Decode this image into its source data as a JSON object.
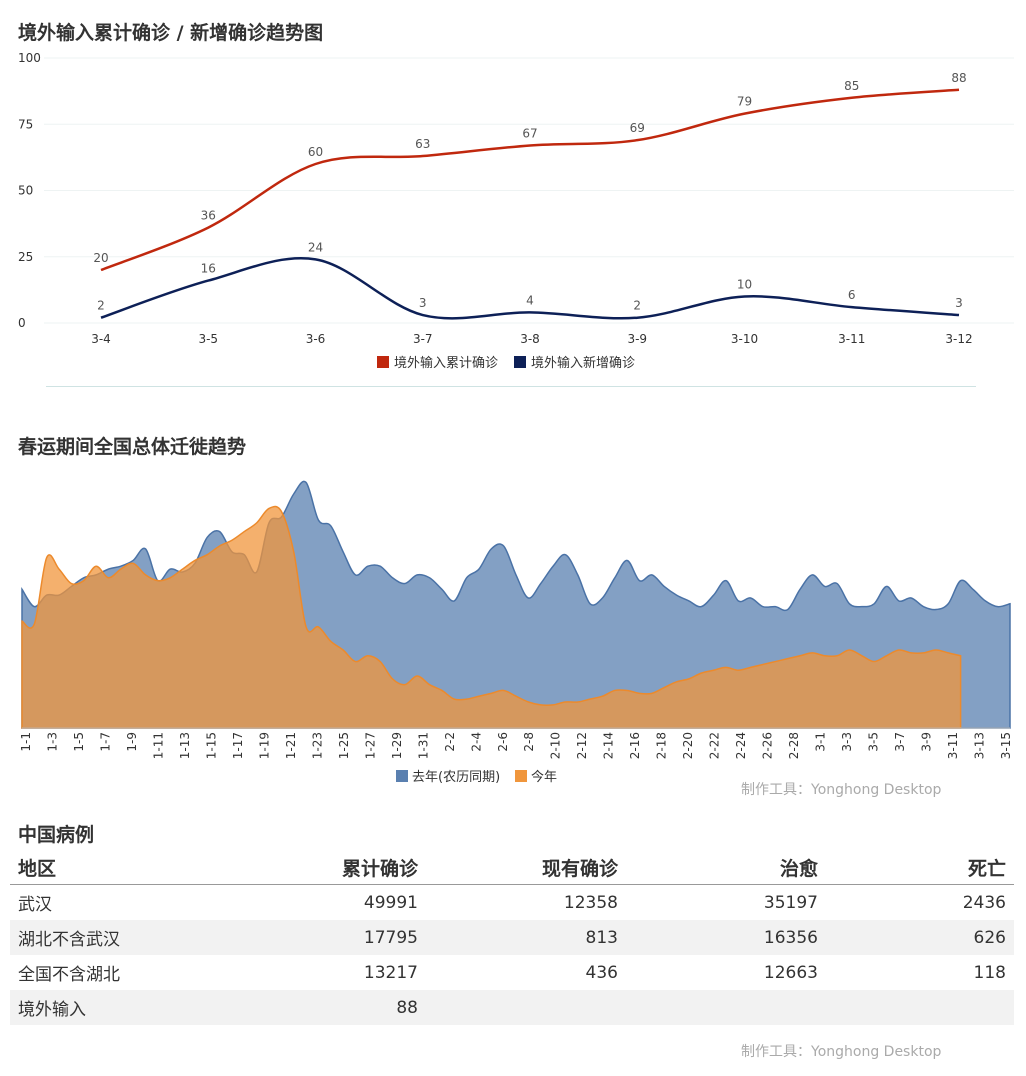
{
  "chart1": {
    "title": "境外输入累计确诊 / 新增确诊趋势图",
    "chart_data": {
      "type": "line",
      "categories": [
        "3-4",
        "3-5",
        "3-6",
        "3-7",
        "3-8",
        "3-9",
        "3-10",
        "3-11",
        "3-12"
      ],
      "yticks": [
        "0",
        "25",
        "50",
        "75",
        "100"
      ],
      "ylim": [
        0,
        100
      ],
      "legend_position": "bottom",
      "grid": true,
      "series": [
        {
          "name": "境外输入累计确诊",
          "color": "#c0280e",
          "values": [
            20,
            36,
            60,
            63,
            67,
            69,
            79,
            85,
            88
          ]
        },
        {
          "name": "境外输入新增确诊",
          "color": "#0d2057",
          "values": [
            2,
            16,
            24,
            3,
            4,
            2,
            10,
            6,
            3
          ]
        }
      ]
    }
  },
  "chart2": {
    "title": "春运期间全国总体迁徙趋势",
    "chart_data": {
      "type": "area",
      "x_labels": [
        "1-1",
        "1-3",
        "1-5",
        "1-7",
        "1-9",
        "1-11",
        "1-13",
        "1-15",
        "1-17",
        "1-19",
        "1-21",
        "1-23",
        "1-25",
        "1-27",
        "1-29",
        "1-31",
        "2-2",
        "2-4",
        "2-6",
        "2-8",
        "2-10",
        "2-12",
        "2-14",
        "2-16",
        "2-18",
        "2-20",
        "2-22",
        "2-24",
        "2-26",
        "2-28",
        "3-1",
        "3-3",
        "3-5",
        "3-7",
        "3-9",
        "3-11",
        "3-13",
        "3-15"
      ],
      "legend_position": "bottom",
      "series": [
        {
          "name": "去年(农历同期)",
          "color": "#5a80b0",
          "values": [
            4.8,
            4.2,
            4.6,
            4.6,
            4.9,
            5.2,
            5.3,
            5.5,
            5.6,
            5.8,
            6.2,
            5.1,
            5.5,
            5.4,
            5.7,
            6.6,
            6.8,
            6.1,
            6.0,
            5.4,
            7.1,
            7.3,
            8.1,
            8.5,
            7.2,
            7.0,
            6.1,
            5.3,
            5.6,
            5.6,
            5.2,
            5.0,
            5.3,
            5.2,
            4.8,
            4.4,
            5.2,
            5.5,
            6.2,
            6.3,
            5.3,
            4.5,
            5.0,
            5.6,
            6.0,
            5.3,
            4.3,
            4.5,
            5.2,
            5.8,
            5.1,
            5.3,
            4.9,
            4.6,
            4.4,
            4.2,
            4.6,
            5.1,
            4.4,
            4.5,
            4.2,
            4.2,
            4.1,
            4.8,
            5.3,
            4.9,
            5.0,
            4.3,
            4.2,
            4.3,
            4.9,
            4.4,
            4.5,
            4.2,
            4.1,
            4.3,
            5.1,
            4.8,
            4.4,
            4.2,
            4.3
          ]
        },
        {
          "name": "今年",
          "color": "#f0963c",
          "values": [
            3.7,
            3.6,
            5.9,
            5.5,
            5.0,
            5.1,
            5.6,
            5.2,
            5.5,
            5.7,
            5.3,
            5.1,
            5.2,
            5.5,
            5.8,
            6.0,
            6.3,
            6.5,
            6.8,
            7.1,
            7.6,
            7.5,
            6.1,
            3.5,
            3.5,
            3.0,
            2.7,
            2.3,
            2.5,
            2.3,
            1.7,
            1.5,
            1.8,
            1.5,
            1.3,
            1.0,
            1.0,
            1.1,
            1.2,
            1.3,
            1.1,
            0.9,
            0.8,
            0.8,
            0.9,
            0.9,
            1.0,
            1.1,
            1.3,
            1.3,
            1.2,
            1.2,
            1.4,
            1.6,
            1.7,
            1.9,
            2.0,
            2.1,
            2.0,
            2.1,
            2.2,
            2.3,
            2.4,
            2.5,
            2.6,
            2.5,
            2.5,
            2.7,
            2.5,
            2.3,
            2.5,
            2.7,
            2.6,
            2.6,
            2.7,
            2.6,
            2.5
          ]
        }
      ]
    }
  },
  "watermark": "制作工具：Yonghong Desktop",
  "table": {
    "title": "中国病例",
    "headers": [
      "地区",
      "累计确诊",
      "现有确诊",
      "治愈",
      "死亡"
    ],
    "rows": [
      [
        "武汉",
        "49991",
        "12358",
        "35197",
        "2436"
      ],
      [
        "湖北不含武汉",
        "17795",
        "813",
        "16356",
        "626"
      ],
      [
        "全国不含湖北",
        "13217",
        "436",
        "12663",
        "118"
      ],
      [
        "境外输入",
        "88",
        "",
        "",
        ""
      ]
    ]
  }
}
